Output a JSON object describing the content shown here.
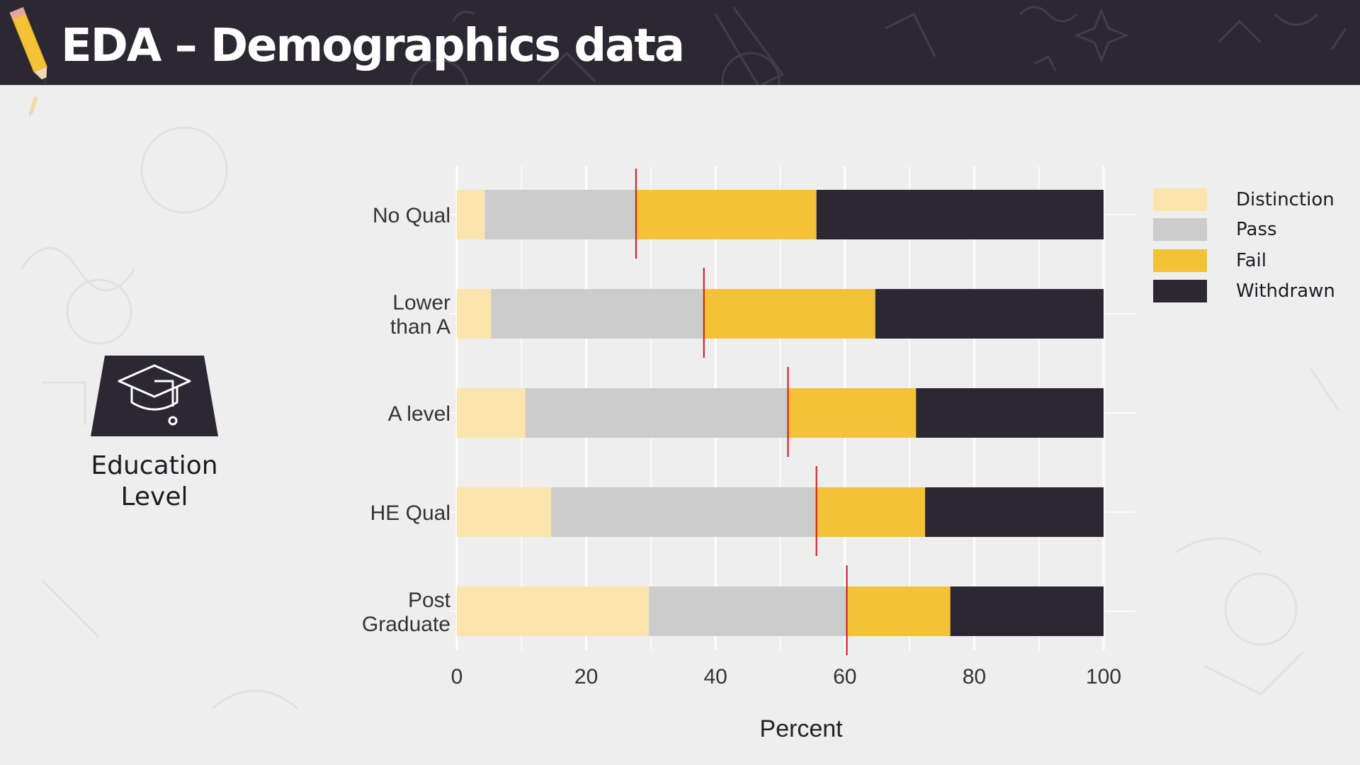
{
  "slide": {
    "title": "EDA – Demographics data",
    "side_label_line1": "Education",
    "side_label_line2": "Level"
  },
  "icons": [
    "pencil-icon",
    "graduation-cap-icon"
  ],
  "colors": {
    "header_bg": "#2c2833",
    "distinction": "#fbe5ad",
    "pass": "#cccccc",
    "fail": "#f4c236",
    "withdrawn": "#2c2833",
    "marker": "#d1141c"
  },
  "chart_data": {
    "type": "bar",
    "orientation": "horizontal",
    "stacked": true,
    "categories": [
      [
        "No Qual"
      ],
      [
        "Lower",
        "than A"
      ],
      [
        "A level"
      ],
      [
        "HE Qual"
      ],
      [
        "Post",
        "Graduate"
      ]
    ],
    "series": [
      {
        "name": "Distinction",
        "values": [
          4.3,
          5.3,
          10.6,
          14.6,
          29.7
        ]
      },
      {
        "name": "Pass",
        "values": [
          23.4,
          32.9,
          40.6,
          41.0,
          30.6
        ]
      },
      {
        "name": "Fail",
        "values": [
          27.9,
          26.5,
          19.8,
          16.8,
          16.0
        ]
      },
      {
        "name": "Withdrawn",
        "values": [
          44.4,
          35.3,
          29.0,
          27.6,
          23.7
        ]
      }
    ],
    "markers": [
      27.7,
      38.2,
      51.2,
      55.6,
      60.3
    ],
    "xlabel": "Percent",
    "ylabel": "",
    "xlim": [
      0,
      100
    ],
    "xticks": [
      0,
      20,
      40,
      60,
      80,
      100
    ],
    "legend": "top-right",
    "grid": true
  }
}
